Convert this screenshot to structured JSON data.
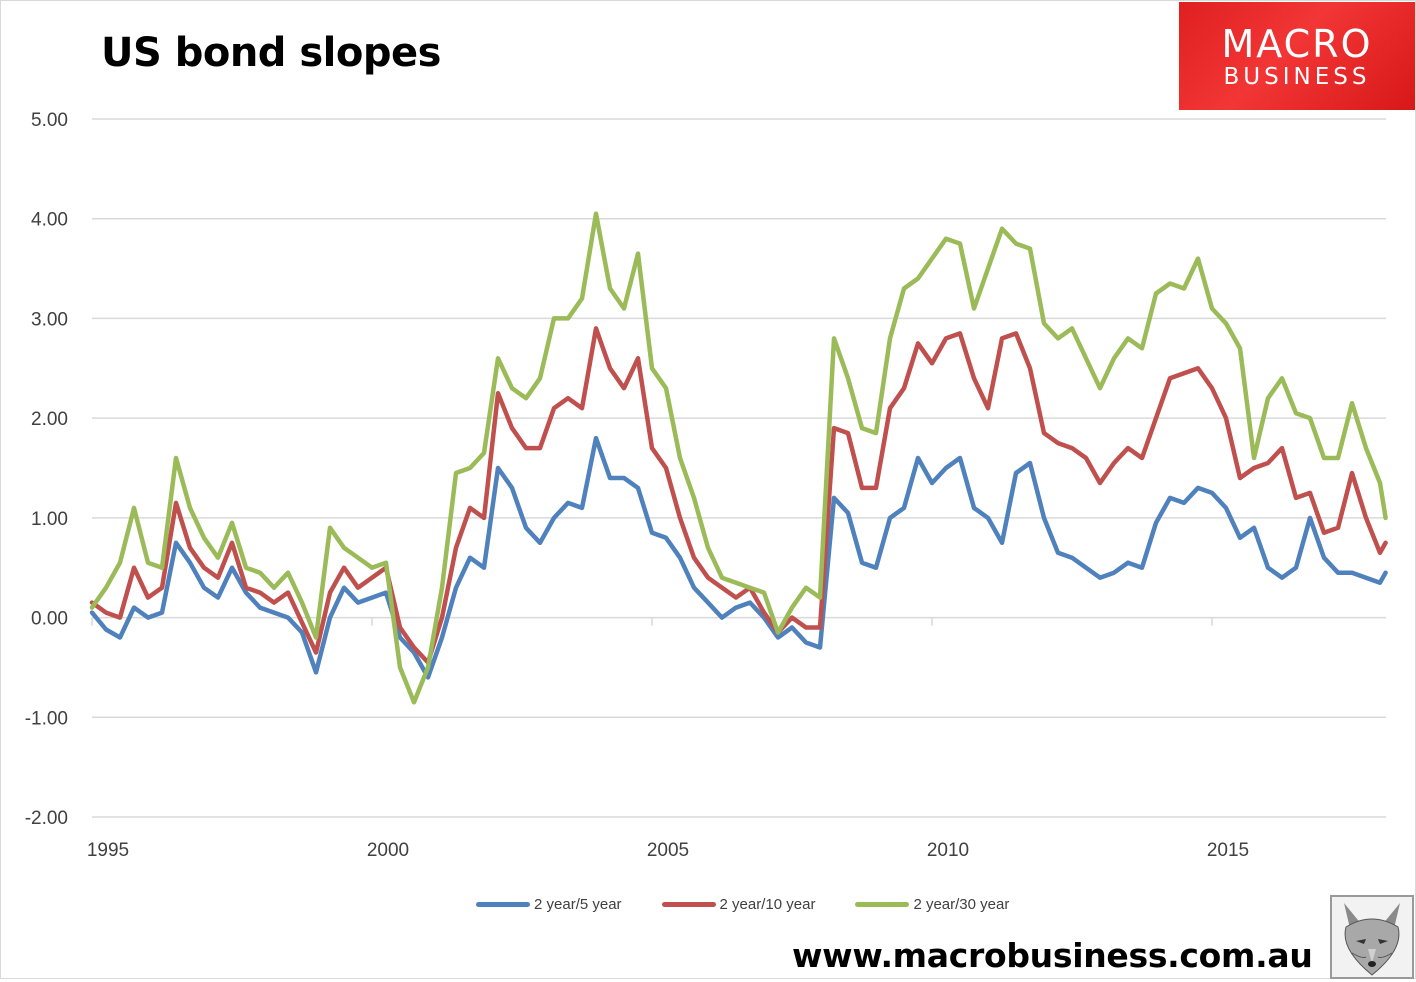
{
  "title": "US bond slopes",
  "logo": {
    "line1": "MACRO",
    "line2": "BUSINESS"
  },
  "footer": {
    "url": "www.macrobusiness.com.au"
  },
  "icons": {
    "fox": "fox-head-icon"
  },
  "colors": {
    "series_5y": "#4f81bd",
    "series_10y": "#c0504d",
    "series_30y": "#9bbb59",
    "logo_red": "#e8282b",
    "grid": "#d9d9d9"
  },
  "legend": [
    {
      "label": "2 year/5 year",
      "color": "#4f81bd"
    },
    {
      "label": "2 year/10 year",
      "color": "#c0504d"
    },
    {
      "label": "2 year/30 year",
      "color": "#9bbb59"
    }
  ],
  "chart_data": {
    "type": "line",
    "title": "US bond slopes",
    "xlabel": "",
    "ylabel": "",
    "ylim": [
      -2.0,
      5.0
    ],
    "yticks": [
      "5.00",
      "4.00",
      "3.00",
      "2.00",
      "1.00",
      "0.00",
      "-1.00",
      "-2.00"
    ],
    "xticks": [
      "1995",
      "2000",
      "2005",
      "2010",
      "2015"
    ],
    "xlim": [
      1995.0,
      2018.1
    ],
    "grid": true,
    "legend_position": "bottom",
    "x": [
      1995.0,
      1995.25,
      1995.5,
      1995.75,
      1996.0,
      1996.25,
      1996.5,
      1996.75,
      1997.0,
      1997.25,
      1997.5,
      1997.75,
      1998.0,
      1998.25,
      1998.5,
      1998.75,
      1999.0,
      1999.25,
      1999.5,
      1999.75,
      2000.0,
      2000.25,
      2000.5,
      2000.75,
      2001.0,
      2001.25,
      2001.5,
      2001.75,
      2002.0,
      2002.25,
      2002.5,
      2002.75,
      2003.0,
      2003.25,
      2003.5,
      2003.75,
      2004.0,
      2004.25,
      2004.5,
      2004.75,
      2005.0,
      2005.25,
      2005.5,
      2005.75,
      2006.0,
      2006.25,
      2006.5,
      2006.75,
      2007.0,
      2007.25,
      2007.5,
      2007.75,
      2008.0,
      2008.25,
      2008.5,
      2008.75,
      2009.0,
      2009.25,
      2009.5,
      2009.75,
      2010.0,
      2010.25,
      2010.5,
      2010.75,
      2011.0,
      2011.25,
      2011.5,
      2011.75,
      2012.0,
      2012.25,
      2012.5,
      2012.75,
      2013.0,
      2013.25,
      2013.5,
      2013.75,
      2014.0,
      2014.25,
      2014.5,
      2014.75,
      2015.0,
      2015.25,
      2015.5,
      2015.75,
      2016.0,
      2016.25,
      2016.5,
      2016.75,
      2017.0,
      2017.25,
      2017.5,
      2017.75,
      2018.0,
      2018.1
    ],
    "series": [
      {
        "name": "2 year/5 year",
        "color": "#4f81bd",
        "values": [
          0.05,
          -0.12,
          -0.2,
          0.1,
          0.0,
          0.05,
          0.75,
          0.55,
          0.3,
          0.2,
          0.5,
          0.25,
          0.1,
          0.05,
          0.0,
          -0.15,
          -0.55,
          0.0,
          0.3,
          0.15,
          0.2,
          0.25,
          -0.2,
          -0.35,
          -0.6,
          -0.2,
          0.3,
          0.6,
          0.5,
          1.5,
          1.3,
          0.9,
          0.75,
          1.0,
          1.15,
          1.1,
          1.8,
          1.4,
          1.4,
          1.3,
          0.85,
          0.8,
          0.6,
          0.3,
          0.15,
          0.0,
          0.1,
          0.15,
          0.0,
          -0.2,
          -0.1,
          -0.25,
          -0.3,
          1.2,
          1.05,
          0.55,
          0.5,
          1.0,
          1.1,
          1.6,
          1.35,
          1.5,
          1.6,
          1.1,
          1.0,
          0.75,
          1.45,
          1.55,
          1.0,
          0.65,
          0.6,
          0.5,
          0.4,
          0.45,
          0.55,
          0.5,
          0.95,
          1.2,
          1.15,
          1.3,
          1.25,
          1.1,
          0.8,
          0.9,
          0.5,
          0.4,
          0.5,
          1.0,
          0.6,
          0.45,
          0.45,
          0.4,
          0.35,
          0.45
        ]
      },
      {
        "name": "2 year/10 year",
        "color": "#c0504d",
        "values": [
          0.15,
          0.05,
          0.0,
          0.5,
          0.2,
          0.3,
          1.15,
          0.7,
          0.5,
          0.4,
          0.75,
          0.3,
          0.25,
          0.15,
          0.25,
          -0.05,
          -0.35,
          0.25,
          0.5,
          0.3,
          0.4,
          0.5,
          -0.1,
          -0.3,
          -0.45,
          0.0,
          0.7,
          1.1,
          1.0,
          2.25,
          1.9,
          1.7,
          1.7,
          2.1,
          2.2,
          2.1,
          2.9,
          2.5,
          2.3,
          2.6,
          1.7,
          1.5,
          1.0,
          0.6,
          0.4,
          0.3,
          0.2,
          0.3,
          0.05,
          -0.15,
          0.0,
          -0.1,
          -0.1,
          1.9,
          1.85,
          1.3,
          1.3,
          2.1,
          2.3,
          2.75,
          2.55,
          2.8,
          2.85,
          2.4,
          2.1,
          2.8,
          2.85,
          2.5,
          1.85,
          1.75,
          1.7,
          1.6,
          1.35,
          1.55,
          1.7,
          1.6,
          2.0,
          2.4,
          2.45,
          2.5,
          2.3,
          2.0,
          1.4,
          1.5,
          1.55,
          1.7,
          1.2,
          1.25,
          0.85,
          0.9,
          1.45,
          1.0,
          0.65,
          0.75
        ]
      },
      {
        "name": "2 year/30 year",
        "color": "#9bbb59",
        "values": [
          0.1,
          0.3,
          0.55,
          1.1,
          0.55,
          0.5,
          1.6,
          1.1,
          0.8,
          0.6,
          0.95,
          0.5,
          0.45,
          0.3,
          0.45,
          0.15,
          -0.2,
          0.9,
          0.7,
          0.6,
          0.5,
          0.55,
          -0.5,
          -0.85,
          -0.5,
          0.3,
          1.45,
          1.5,
          1.65,
          2.6,
          2.3,
          2.2,
          2.4,
          3.0,
          3.0,
          3.2,
          4.05,
          3.3,
          3.1,
          3.65,
          2.5,
          2.3,
          1.6,
          1.2,
          0.7,
          0.4,
          0.35,
          0.3,
          0.25,
          -0.15,
          0.1,
          0.3,
          0.2,
          2.8,
          2.4,
          1.9,
          1.85,
          2.8,
          3.3,
          3.4,
          3.6,
          3.8,
          3.75,
          3.1,
          3.5,
          3.9,
          3.75,
          3.7,
          2.95,
          2.8,
          2.9,
          2.6,
          2.3,
          2.6,
          2.8,
          2.7,
          3.25,
          3.35,
          3.3,
          3.6,
          3.1,
          2.95,
          2.7,
          1.6,
          2.2,
          2.4,
          2.05,
          2.0,
          1.6,
          1.6,
          2.15,
          1.7,
          1.35,
          1.0
        ]
      }
    ]
  }
}
